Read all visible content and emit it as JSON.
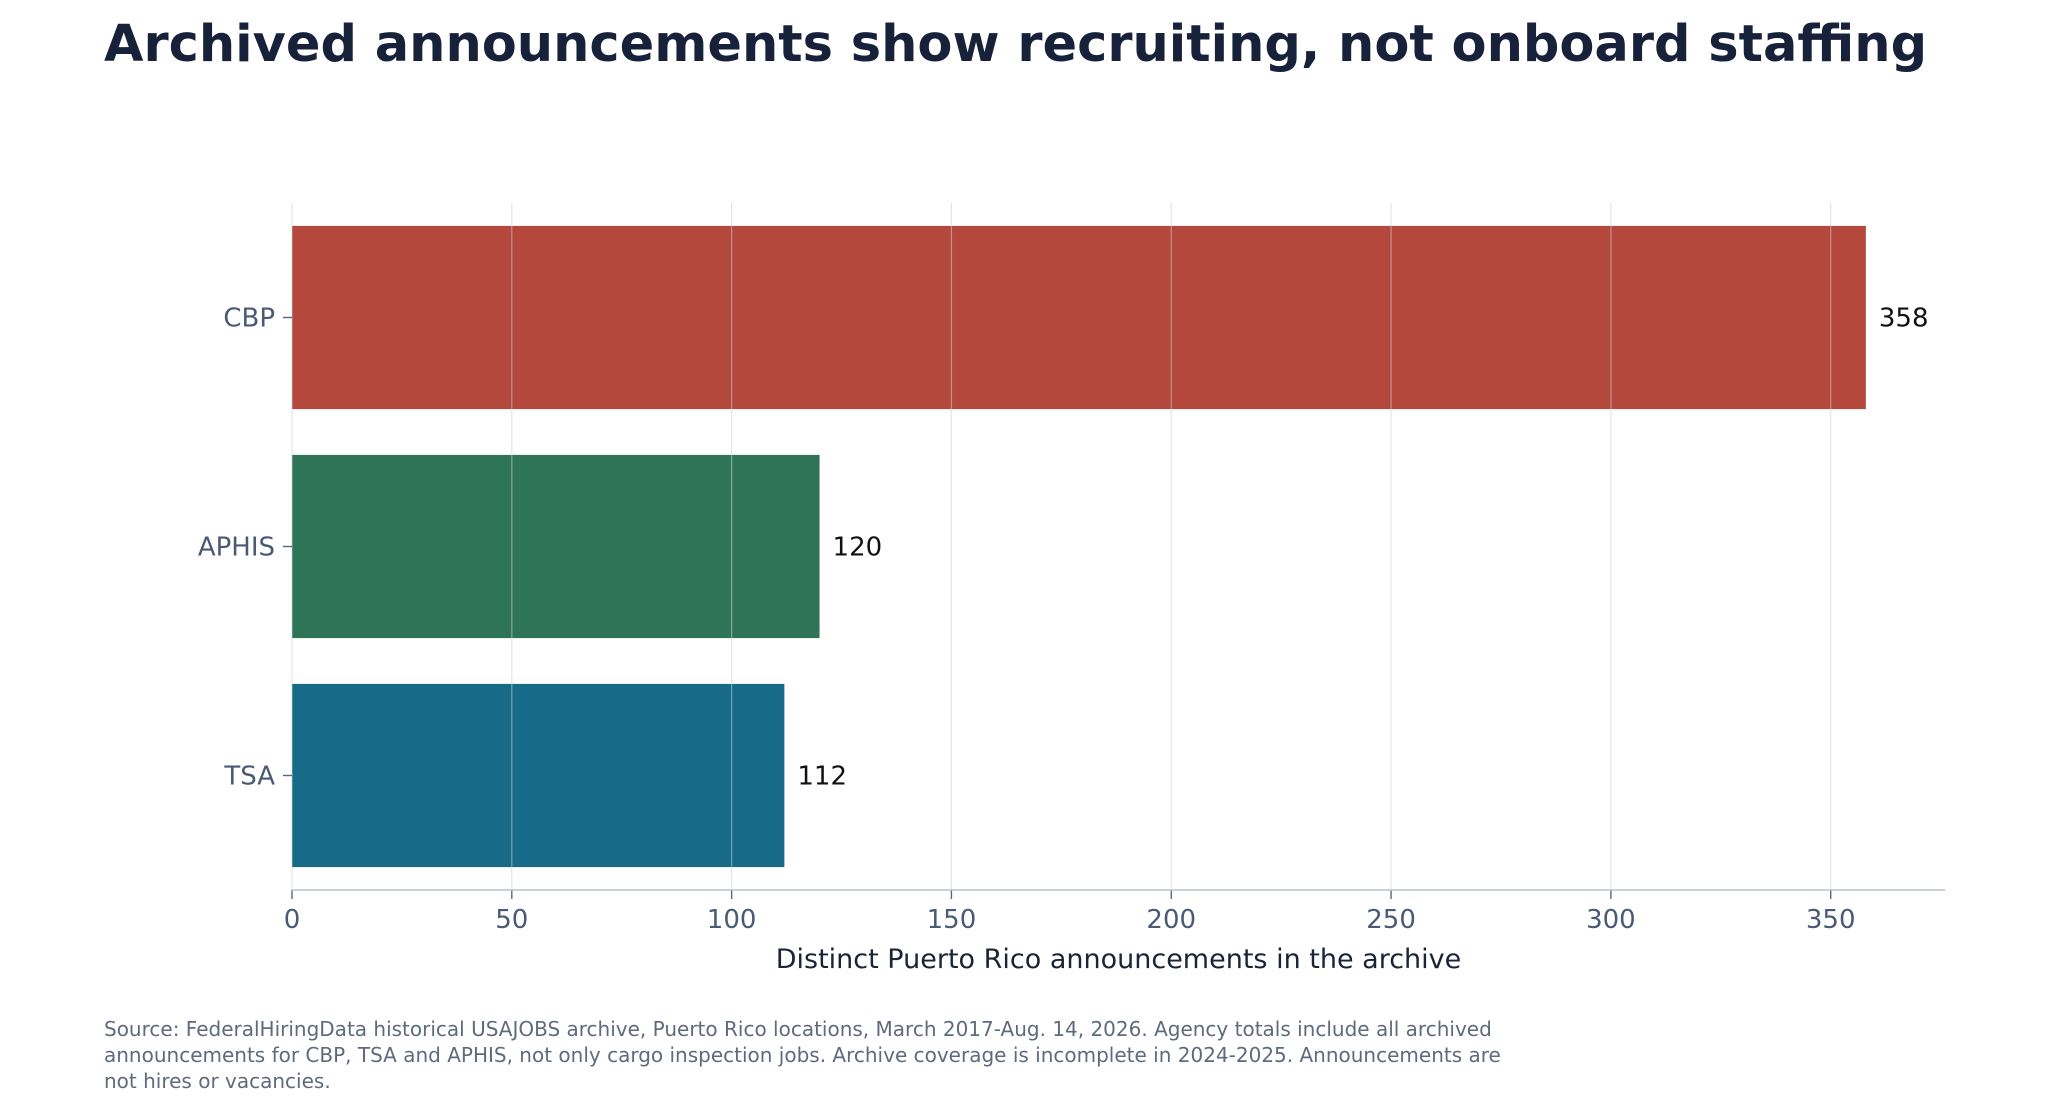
{
  "chart_data": {
    "type": "bar",
    "orientation": "horizontal",
    "title": "Archived announcements show recruiting, not onboard staffing",
    "xlabel": "Distinct Puerto Rico announcements in the archive",
    "ylabel": "",
    "categories": [
      "CBP",
      "APHIS",
      "TSA"
    ],
    "values": [
      358,
      120,
      112
    ],
    "data_labels": [
      "358",
      "120",
      "112"
    ],
    "colors": [
      "#b5483c",
      "#2e7558",
      "#186b88"
    ],
    "xlim": [
      0,
      376
    ],
    "x_ticks": [
      0,
      50,
      100,
      150,
      200,
      250,
      300,
      350
    ],
    "x_tick_labels": [
      "0",
      "50",
      "100",
      "150",
      "200",
      "250",
      "300",
      "350"
    ],
    "grid": "vertical",
    "legend": "none"
  },
  "source_note": "Source: FederalHiringData historical USAJOBS archive, Puerto Rico locations, March 2017-Aug. 14, 2026. Agency totals include all archived announcements for CBP, TSA and APHIS, not only cargo inspection jobs. Archive coverage is incomplete in 2024-2025. Announcements are not hires or vacancies."
}
